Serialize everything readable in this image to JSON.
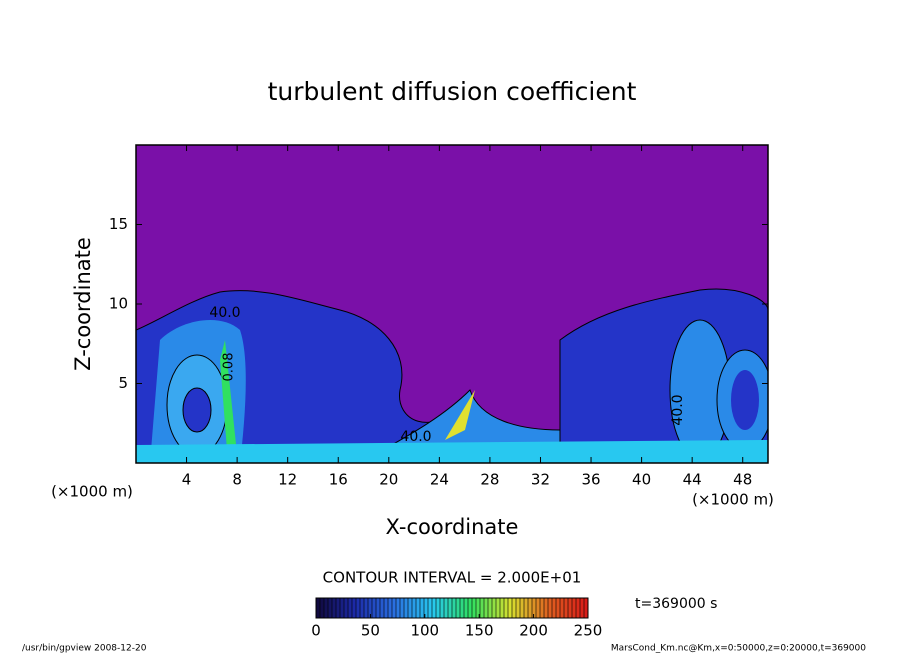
{
  "chart_data": {
    "type": "contour",
    "title": "turbulent diffusion coefficient",
    "xlabel": "X-coordinate",
    "ylabel": "Z-coordinate",
    "x_unit_labels": [
      "(×1000 m)",
      "(×1000 m)"
    ],
    "xlim": [
      0,
      50
    ],
    "xticks": [
      4,
      8,
      12,
      16,
      20,
      24,
      28,
      32,
      36,
      40,
      44,
      48
    ],
    "ylim": [
      0,
      20
    ],
    "yticks": [
      5,
      10,
      15
    ],
    "contour_labels": [
      "40.0",
      "40.0",
      "40.0",
      "0.08"
    ],
    "contour_interval": "CONTOUR INTERVAL = 2.000E+01",
    "time_label": "t=369000 s",
    "colorbar": {
      "lim": [
        0,
        250
      ],
      "ticks": [
        0,
        50,
        100,
        150,
        200,
        250
      ],
      "colors": [
        "#10083a",
        "#1c2aa8",
        "#2a6ee0",
        "#28c8f0",
        "#30e060",
        "#d8e030",
        "#e06020",
        "#d81818"
      ]
    },
    "footer_left": "/usr/bin/gpview   2008-12-20",
    "footer_right": "MarsCond_Km.nc@Km,x=0:50000,z=0:20000,t=369000"
  }
}
